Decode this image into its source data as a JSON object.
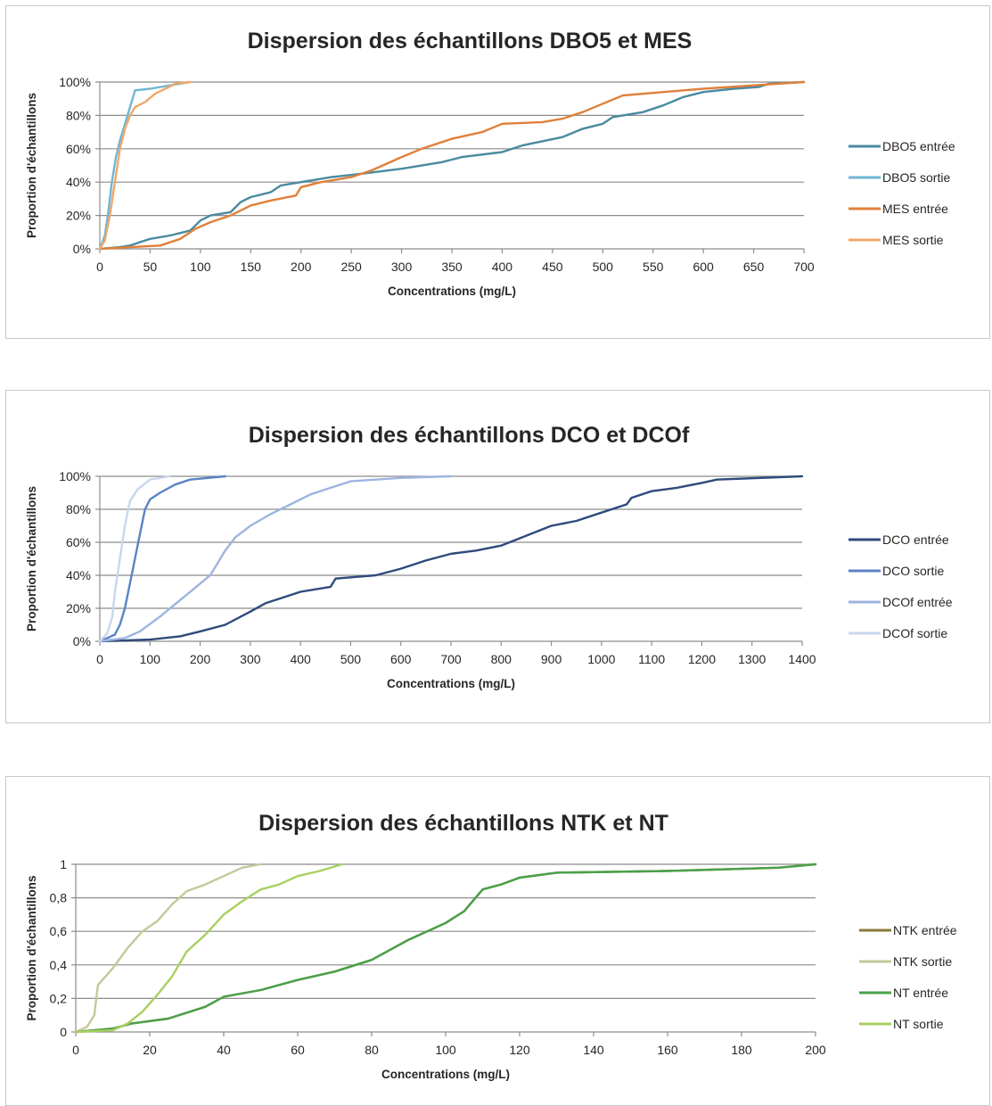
{
  "chart_data": [
    {
      "type": "line",
      "title": "Dispersion des échantillons DBO5 et MES",
      "xlabel": "Concentrations (mg/L)",
      "ylabel": "Proportion d'échantillons",
      "xlim": [
        0,
        700
      ],
      "ylim": [
        0,
        1
      ],
      "x_ticks": [
        "0",
        "50",
        "100",
        "150",
        "200",
        "250",
        "300",
        "350",
        "400",
        "450",
        "500",
        "550",
        "600",
        "650",
        "700"
      ],
      "y_ticks": [
        "0%",
        "20%",
        "40%",
        "60%",
        "80%",
        "100%"
      ],
      "grid": true,
      "legend_position": "right",
      "series": [
        {
          "name": "DBO5 entrée",
          "color": "#4a8a9f",
          "points": [
            [
              0,
              0
            ],
            [
              20,
              0.01
            ],
            [
              30,
              0.02
            ],
            [
              40,
              0.04
            ],
            [
              50,
              0.06
            ],
            [
              70,
              0.08
            ],
            [
              90,
              0.11
            ],
            [
              100,
              0.17
            ],
            [
              110,
              0.2
            ],
            [
              130,
              0.22
            ],
            [
              140,
              0.28
            ],
            [
              150,
              0.31
            ],
            [
              170,
              0.34
            ],
            [
              180,
              0.38
            ],
            [
              200,
              0.4
            ],
            [
              230,
              0.43
            ],
            [
              260,
              0.45
            ],
            [
              300,
              0.48
            ],
            [
              340,
              0.52
            ],
            [
              360,
              0.55
            ],
            [
              400,
              0.58
            ],
            [
              420,
              0.62
            ],
            [
              460,
              0.67
            ],
            [
              480,
              0.72
            ],
            [
              500,
              0.75
            ],
            [
              510,
              0.79
            ],
            [
              540,
              0.82
            ],
            [
              560,
              0.86
            ],
            [
              580,
              0.91
            ],
            [
              600,
              0.94
            ],
            [
              630,
              0.96
            ],
            [
              655,
              0.97
            ],
            [
              665,
              0.99
            ],
            [
              700,
              1.0
            ]
          ]
        },
        {
          "name": "DBO5 sortie",
          "color": "#6fb6d4",
          "points": [
            [
              0,
              0
            ],
            [
              5,
              0.08
            ],
            [
              8,
              0.2
            ],
            [
              12,
              0.4
            ],
            [
              16,
              0.55
            ],
            [
              20,
              0.65
            ],
            [
              25,
              0.75
            ],
            [
              30,
              0.85
            ],
            [
              35,
              0.95
            ],
            [
              50,
              0.96
            ],
            [
              70,
              0.98
            ],
            [
              90,
              1.0
            ]
          ]
        },
        {
          "name": "MES entrée",
          "color": "#e0803a",
          "points": [
            [
              0,
              0
            ],
            [
              30,
              0.01
            ],
            [
              60,
              0.02
            ],
            [
              80,
              0.06
            ],
            [
              95,
              0.12
            ],
            [
              110,
              0.16
            ],
            [
              130,
              0.2
            ],
            [
              150,
              0.26
            ],
            [
              170,
              0.29
            ],
            [
              195,
              0.32
            ],
            [
              200,
              0.37
            ],
            [
              220,
              0.4
            ],
            [
              250,
              0.43
            ],
            [
              270,
              0.47
            ],
            [
              300,
              0.55
            ],
            [
              320,
              0.6
            ],
            [
              350,
              0.66
            ],
            [
              380,
              0.7
            ],
            [
              400,
              0.75
            ],
            [
              440,
              0.76
            ],
            [
              460,
              0.78
            ],
            [
              480,
              0.82
            ],
            [
              500,
              0.87
            ],
            [
              520,
              0.92
            ],
            [
              560,
              0.94
            ],
            [
              600,
              0.96
            ],
            [
              650,
              0.98
            ],
            [
              700,
              1.0
            ]
          ]
        },
        {
          "name": "MES sortie",
          "color": "#f0a86a",
          "points": [
            [
              0,
              0
            ],
            [
              5,
              0.05
            ],
            [
              10,
              0.2
            ],
            [
              15,
              0.4
            ],
            [
              20,
              0.6
            ],
            [
              25,
              0.72
            ],
            [
              30,
              0.8
            ],
            [
              35,
              0.85
            ],
            [
              45,
              0.88
            ],
            [
              55,
              0.93
            ],
            [
              65,
              0.96
            ],
            [
              75,
              0.99
            ],
            [
              90,
              1.0
            ]
          ]
        }
      ]
    },
    {
      "type": "line",
      "title": "Dispersion des échantillons DCO et DCOf",
      "xlabel": "Concentrations (mg/L)",
      "ylabel": "Proportion d'échantillons",
      "xlim": [
        0,
        1400
      ],
      "ylim": [
        0,
        1
      ],
      "x_ticks": [
        "0",
        "100",
        "200",
        "300",
        "400",
        "500",
        "600",
        "700",
        "800",
        "900",
        "1000",
        "1100",
        "1200",
        "1300",
        "1400"
      ],
      "y_ticks": [
        "0%",
        "20%",
        "40%",
        "60%",
        "80%",
        "100%"
      ],
      "grid": true,
      "legend_position": "right",
      "series": [
        {
          "name": "DCO entrée",
          "color": "#2f4a7c",
          "points": [
            [
              0,
              0
            ],
            [
              100,
              0.01
            ],
            [
              160,
              0.03
            ],
            [
              200,
              0.06
            ],
            [
              250,
              0.1
            ],
            [
              300,
              0.18
            ],
            [
              330,
              0.23
            ],
            [
              400,
              0.3
            ],
            [
              460,
              0.33
            ],
            [
              470,
              0.38
            ],
            [
              550,
              0.4
            ],
            [
              600,
              0.44
            ],
            [
              650,
              0.49
            ],
            [
              700,
              0.53
            ],
            [
              750,
              0.55
            ],
            [
              800,
              0.58
            ],
            [
              850,
              0.64
            ],
            [
              900,
              0.7
            ],
            [
              950,
              0.73
            ],
            [
              1000,
              0.78
            ],
            [
              1050,
              0.83
            ],
            [
              1060,
              0.87
            ],
            [
              1100,
              0.91
            ],
            [
              1150,
              0.93
            ],
            [
              1200,
              0.96
            ],
            [
              1230,
              0.98
            ],
            [
              1400,
              1.0
            ]
          ]
        },
        {
          "name": "DCO sortie",
          "color": "#5b84c4",
          "points": [
            [
              0,
              0
            ],
            [
              30,
              0.04
            ],
            [
              40,
              0.1
            ],
            [
              50,
              0.2
            ],
            [
              60,
              0.35
            ],
            [
              70,
              0.5
            ],
            [
              80,
              0.65
            ],
            [
              90,
              0.8
            ],
            [
              100,
              0.86
            ],
            [
              120,
              0.9
            ],
            [
              150,
              0.95
            ],
            [
              180,
              0.98
            ],
            [
              250,
              1.0
            ]
          ]
        },
        {
          "name": "DCOf entrée",
          "color": "#9eb4df",
          "points": [
            [
              0,
              0
            ],
            [
              50,
              0.02
            ],
            [
              80,
              0.06
            ],
            [
              120,
              0.15
            ],
            [
              160,
              0.25
            ],
            [
              200,
              0.35
            ],
            [
              220,
              0.4
            ],
            [
              250,
              0.55
            ],
            [
              270,
              0.63
            ],
            [
              300,
              0.7
            ],
            [
              340,
              0.77
            ],
            [
              380,
              0.83
            ],
            [
              420,
              0.89
            ],
            [
              460,
              0.93
            ],
            [
              500,
              0.97
            ],
            [
              600,
              0.99
            ],
            [
              700,
              1.0
            ]
          ]
        },
        {
          "name": "DCOf sortie",
          "color": "#c8d6ee",
          "points": [
            [
              0,
              0
            ],
            [
              15,
              0.05
            ],
            [
              25,
              0.15
            ],
            [
              30,
              0.3
            ],
            [
              40,
              0.5
            ],
            [
              50,
              0.7
            ],
            [
              60,
              0.85
            ],
            [
              75,
              0.92
            ],
            [
              100,
              0.98
            ],
            [
              140,
              1.0
            ]
          ]
        }
      ]
    },
    {
      "type": "line",
      "title": "Dispersion des échantillons NTK et NT",
      "xlabel": "Concentrations (mg/L)",
      "ylabel": "Proportion d'échantillons",
      "xlim": [
        0,
        200
      ],
      "ylim": [
        0,
        1
      ],
      "x_ticks": [
        "0",
        "20",
        "40",
        "60",
        "80",
        "100",
        "120",
        "140",
        "160",
        "180",
        "200"
      ],
      "y_ticks": [
        "0",
        "0,2",
        "0,4",
        "0,6",
        "0,8",
        "1"
      ],
      "grid": true,
      "legend_position": "right",
      "series": [
        {
          "name": "NTK entrée",
          "color": "#8a7a3a",
          "points": [
            [
              0,
              0
            ],
            [
              10,
              0.02
            ],
            [
              15,
              0.05
            ],
            [
              25,
              0.08
            ],
            [
              35,
              0.15
            ],
            [
              40,
              0.21
            ],
            [
              50,
              0.25
            ],
            [
              60,
              0.31
            ],
            [
              70,
              0.36
            ],
            [
              80,
              0.43
            ],
            [
              90,
              0.55
            ],
            [
              100,
              0.65
            ],
            [
              105,
              0.72
            ],
            [
              110,
              0.85
            ],
            [
              115,
              0.88
            ],
            [
              120,
              0.92
            ],
            [
              130,
              0.95
            ],
            [
              160,
              0.96
            ],
            [
              190,
              0.98
            ],
            [
              200,
              1.0
            ]
          ]
        },
        {
          "name": "NTK sortie",
          "color": "#c4c89a",
          "points": [
            [
              0,
              0
            ],
            [
              3,
              0.03
            ],
            [
              5,
              0.1
            ],
            [
              6,
              0.28
            ],
            [
              10,
              0.38
            ],
            [
              14,
              0.5
            ],
            [
              18,
              0.6
            ],
            [
              22,
              0.66
            ],
            [
              26,
              0.76
            ],
            [
              30,
              0.84
            ],
            [
              35,
              0.88
            ],
            [
              40,
              0.93
            ],
            [
              45,
              0.98
            ],
            [
              50,
              1.0
            ]
          ]
        },
        {
          "name": "NT entrée",
          "color": "#4aa04a",
          "points": [
            [
              0,
              0
            ],
            [
              10,
              0.02
            ],
            [
              15,
              0.05
            ],
            [
              25,
              0.08
            ],
            [
              35,
              0.15
            ],
            [
              40,
              0.21
            ],
            [
              50,
              0.25
            ],
            [
              60,
              0.31
            ],
            [
              70,
              0.36
            ],
            [
              80,
              0.43
            ],
            [
              90,
              0.55
            ],
            [
              100,
              0.65
            ],
            [
              105,
              0.72
            ],
            [
              110,
              0.85
            ],
            [
              115,
              0.88
            ],
            [
              120,
              0.92
            ],
            [
              130,
              0.95
            ],
            [
              160,
              0.96
            ],
            [
              190,
              0.98
            ],
            [
              200,
              1.0
            ]
          ]
        },
        {
          "name": "NT sortie",
          "color": "#a8cf60",
          "points": [
            [
              0,
              0
            ],
            [
              10,
              0.01
            ],
            [
              14,
              0.05
            ],
            [
              18,
              0.12
            ],
            [
              22,
              0.22
            ],
            [
              26,
              0.33
            ],
            [
              30,
              0.48
            ],
            [
              35,
              0.58
            ],
            [
              40,
              0.7
            ],
            [
              45,
              0.78
            ],
            [
              50,
              0.85
            ],
            [
              55,
              0.88
            ],
            [
              60,
              0.93
            ],
            [
              66,
              0.96
            ],
            [
              72,
              1.0
            ]
          ]
        }
      ]
    }
  ]
}
